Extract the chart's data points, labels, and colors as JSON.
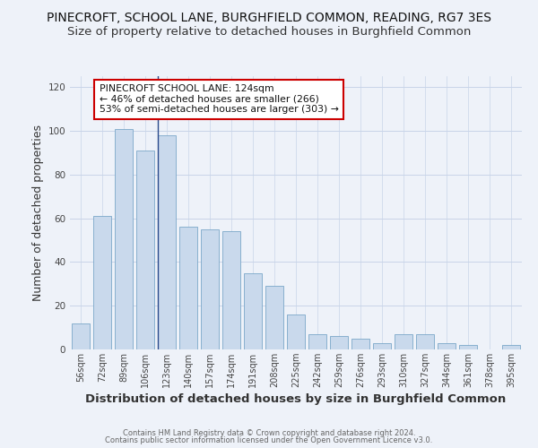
{
  "title1": "PINECROFT, SCHOOL LANE, BURGHFIELD COMMON, READING, RG7 3ES",
  "title2": "Size of property relative to detached houses in Burghfield Common",
  "xlabel": "Distribution of detached houses by size in Burghfield Common",
  "ylabel": "Number of detached properties",
  "bar_labels": [
    "56sqm",
    "72sqm",
    "89sqm",
    "106sqm",
    "123sqm",
    "140sqm",
    "157sqm",
    "174sqm",
    "191sqm",
    "208sqm",
    "225sqm",
    "242sqm",
    "259sqm",
    "276sqm",
    "293sqm",
    "310sqm",
    "327sqm",
    "344sqm",
    "361sqm",
    "378sqm",
    "395sqm"
  ],
  "bar_values": [
    12,
    61,
    101,
    91,
    98,
    56,
    55,
    54,
    35,
    29,
    16,
    7,
    6,
    5,
    3,
    7,
    7,
    3,
    2,
    0,
    2
  ],
  "bar_color": "#c9d9ec",
  "bar_edge_color": "#7ba7c9",
  "marker_line_color": "#2b4a8c",
  "ylim": [
    0,
    125
  ],
  "yticks": [
    0,
    20,
    40,
    60,
    80,
    100,
    120
  ],
  "annotation_text": "PINECROFT SCHOOL LANE: 124sqm\n← 46% of detached houses are smaller (266)\n53% of semi-detached houses are larger (303) →",
  "annotation_box_color": "#ffffff",
  "annotation_box_edge": "#cc0000",
  "footer1": "Contains HM Land Registry data © Crown copyright and database right 2024.",
  "footer2": "Contains public sector information licensed under the Open Government Licence v3.0.",
  "bg_color": "#eef2f9",
  "grid_color": "#c8d4e8",
  "title1_fontsize": 10.0,
  "title2_fontsize": 9.5,
  "ylabel_fontsize": 9.0,
  "xlabel_fontsize": 9.5,
  "annotation_fontsize": 7.8,
  "tick_fontsize": 7.0,
  "footer_fontsize": 6.0
}
